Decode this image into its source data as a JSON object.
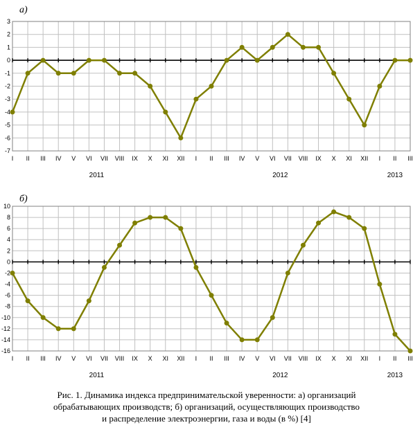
{
  "caption": {
    "line1": "Рис. 1. Динамика индекса предпринимательской уверенности: а) организаций",
    "line2": "обрабатывающих производств; б) организаций, осуществляющих производство",
    "line3": "и распределение электроэнергии, газа и воды (в %) [4]"
  },
  "chart_data": [
    {
      "type": "line",
      "panel_label": "а)",
      "title": "",
      "xlabel": "",
      "ylabel": "",
      "ylim": [
        -7,
        3
      ],
      "yticks": [
        3,
        2,
        1,
        0,
        -1,
        -2,
        -3,
        -4,
        -5,
        -6,
        -7
      ],
      "grid": true,
      "categories": [
        "I",
        "II",
        "III",
        "IV",
        "V",
        "VI",
        "VII",
        "VIII",
        "IX",
        "X",
        "XI",
        "XII",
        "I",
        "II",
        "III",
        "IV",
        "V",
        "VI",
        "VII",
        "VIII",
        "IX",
        "X",
        "XI",
        "XII",
        "I",
        "II",
        "III"
      ],
      "years": [
        "2011",
        "2012",
        "2013"
      ],
      "series": [
        {
          "values": [
            -4,
            -1,
            0,
            -1,
            -1,
            0,
            0,
            -1,
            -1,
            -2,
            -4,
            -6,
            -3,
            -2,
            0,
            1,
            0,
            1,
            2,
            1,
            1,
            -1,
            -3,
            -5,
            -2,
            0,
            0
          ]
        }
      ],
      "colors": {
        "line": "#7f7f00",
        "marker": "#7f7f00",
        "grid": "#c0c0c0",
        "zero": "#000000"
      }
    },
    {
      "type": "line",
      "panel_label": "б)",
      "title": "",
      "xlabel": "",
      "ylabel": "",
      "ylim": [
        -16,
        10
      ],
      "yticks": [
        10,
        8,
        6,
        4,
        2,
        0,
        -2,
        -4,
        -6,
        -8,
        -10,
        -12,
        -14,
        -16
      ],
      "grid": true,
      "categories": [
        "I",
        "II",
        "III",
        "IV",
        "V",
        "VI",
        "VII",
        "VIII",
        "IX",
        "X",
        "XI",
        "XII",
        "I",
        "II",
        "III",
        "IV",
        "V",
        "VI",
        "VII",
        "VIII",
        "IX",
        "X",
        "XI",
        "XII",
        "I",
        "II",
        "III"
      ],
      "years": [
        "2011",
        "2012",
        "2013"
      ],
      "series": [
        {
          "values": [
            -2,
            -7,
            -10,
            -12,
            -12,
            -7,
            -1,
            3,
            7,
            8,
            8,
            6,
            -1,
            -6,
            -11,
            -14,
            -14,
            -10,
            -2,
            3,
            7,
            9,
            8,
            6,
            -4,
            -13,
            -16
          ]
        }
      ],
      "colors": {
        "line": "#7f7f00",
        "marker": "#7f7f00",
        "grid": "#c0c0c0",
        "zero": "#000000"
      }
    }
  ]
}
